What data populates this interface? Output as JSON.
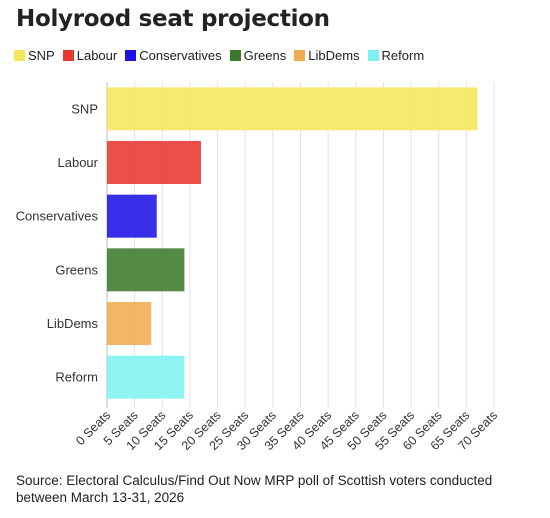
{
  "title": "Holyrood seat projection",
  "source": "Source: Electoral Calculus/Find Out Now MRP poll of Scottish voters conducted between March 13-31, 2026",
  "legend": [
    {
      "label": "SNP",
      "color": "#f7e65b"
    },
    {
      "label": "Labour",
      "color": "#e8372f"
    },
    {
      "label": "Conservatives",
      "color": "#1d13e6"
    },
    {
      "label": "Greens",
      "color": "#3b7a2a"
    },
    {
      "label": "LibDems",
      "color": "#efad52"
    },
    {
      "label": "Reform",
      "color": "#7df3f1"
    }
  ],
  "chart_data": {
    "type": "bar",
    "orientation": "horizontal",
    "title": "Holyrood seat projection",
    "categories": [
      "SNP",
      "Labour",
      "Conservatives",
      "Greens",
      "LibDems",
      "Reform"
    ],
    "values": [
      67,
      17,
      9,
      14,
      8,
      14
    ],
    "colors": [
      "#f7e65b",
      "#e8372f",
      "#1d13e6",
      "#3b7a2a",
      "#efad52",
      "#7df3f1"
    ],
    "xlim": [
      0,
      70
    ],
    "x_ticks": [
      0,
      5,
      10,
      15,
      20,
      25,
      30,
      35,
      40,
      45,
      50,
      55,
      60,
      65,
      70
    ],
    "x_tick_suffix": " Seats",
    "grid": "vertical",
    "legend": "top-left"
  }
}
